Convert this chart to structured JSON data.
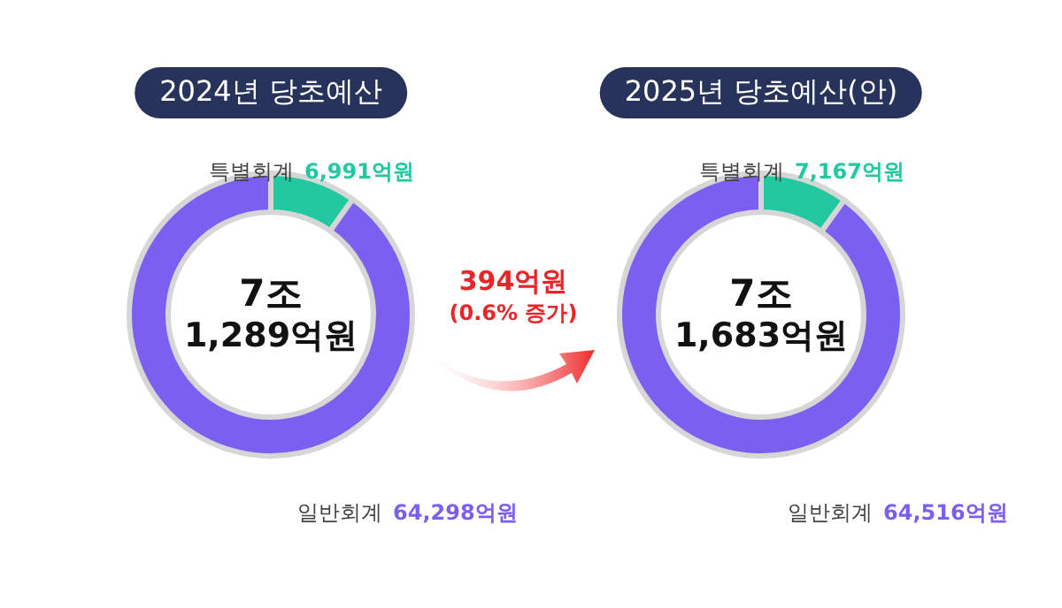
{
  "chart_data": [
    {
      "type": "donut",
      "title": "2024년 당초예산",
      "categories": [
        "특별회계",
        "일반회계"
      ],
      "values": [
        6991,
        64298
      ],
      "colors": [
        "#22c9a0",
        "#7a5ff0"
      ],
      "value_labels": [
        "6,991억원",
        "64,298억원"
      ],
      "annotations": [
        "7조",
        "1,289억원"
      ]
    },
    {
      "type": "donut",
      "title": "2025년 당초예산(안)",
      "categories": [
        "특별회계",
        "일반회계"
      ],
      "values": [
        7167,
        64516
      ],
      "colors": [
        "#22c9a0",
        "#7a5ff0"
      ],
      "value_labels": [
        "7,167억원",
        "64,516억원"
      ],
      "annotations": [
        "7조",
        "1,683억원",
        "394억원",
        "(0.6% 증가)"
      ]
    }
  ]
}
